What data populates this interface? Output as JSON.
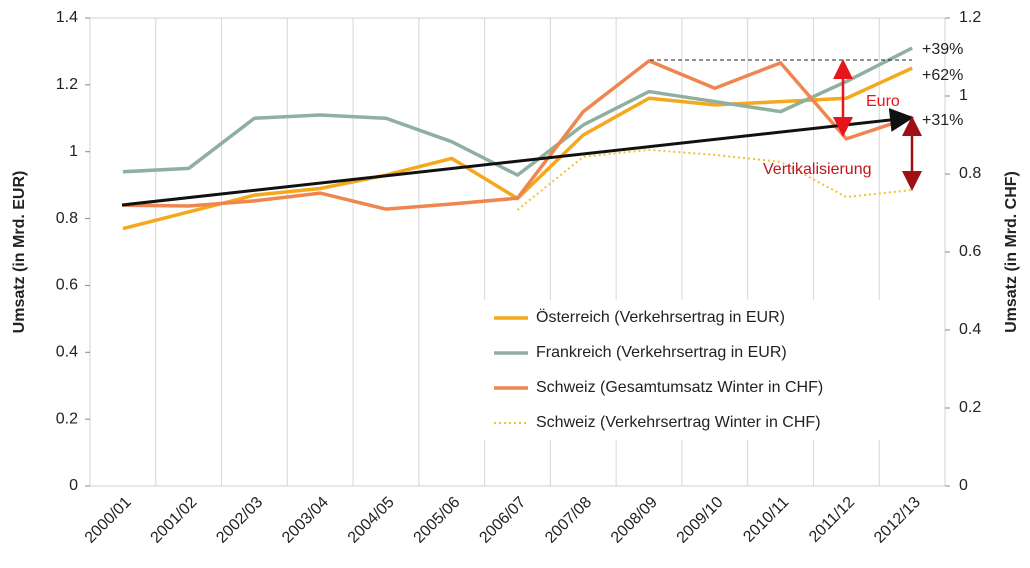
{
  "chart_data": {
    "type": "line",
    "categories": [
      "2000/01",
      "2001/02",
      "2002/03",
      "2003/04",
      "2004/05",
      "2005/06",
      "2006/07",
      "2007/08",
      "2008/09",
      "2009/10",
      "2010/11",
      "2011/12",
      "2012/13"
    ],
    "y_label": "Umsatz (in Mrd. EUR)",
    "y2_label": "Umsatz (in Mrd. CHF)",
    "ylim": [
      0,
      1.4
    ],
    "yticks": [
      0,
      0.2,
      0.4,
      0.6,
      0.8,
      1,
      1.2,
      1.4
    ],
    "y2lim": [
      0,
      1.2
    ],
    "y2ticks": [
      0,
      0.2,
      0.4,
      0.6,
      0.8,
      1,
      1.2
    ],
    "grid": "x",
    "legend": "lower right",
    "series": [
      {
        "name": "Österreich (Verkehrsertrag in EUR)",
        "color": "#f5a81c",
        "style": "solid",
        "values": [
          0.77,
          0.82,
          0.87,
          0.89,
          0.93,
          0.98,
          0.86,
          1.05,
          1.16,
          1.14,
          1.15,
          1.16,
          1.25
        ]
      },
      {
        "name": "Frankreich (Verkehrsertrag in EUR)",
        "color": "#8fb09f",
        "style": "solid",
        "values": [
          0.94,
          0.95,
          1.1,
          1.11,
          1.1,
          1.03,
          0.93,
          1.08,
          1.18,
          1.15,
          1.12,
          1.21,
          1.31
        ]
      },
      {
        "name": "Schweiz (Gesamtumsatz Winter in CHF)",
        "color": "#ef8650",
        "style": "solid",
        "axis": "y2",
        "values": [
          0.72,
          0.718,
          0.731,
          0.751,
          0.71,
          0.723,
          0.738,
          0.96,
          1.09,
          1.02,
          1.085,
          0.89,
          0.946
        ]
      },
      {
        "name": "Schweiz (Verkehrsertrag Winter in CHF)",
        "color": "#f2c230",
        "style": "dotted",
        "axis": "y2",
        "values": [
          null,
          null,
          null,
          null,
          null,
          null,
          0.708,
          0.844,
          0.862,
          0.849,
          0.831,
          0.741,
          0.759
        ]
      }
    ],
    "annotations": [
      "+39%",
      "+62%",
      "+31%",
      "Euro",
      "Vertikalisierung"
    ]
  }
}
